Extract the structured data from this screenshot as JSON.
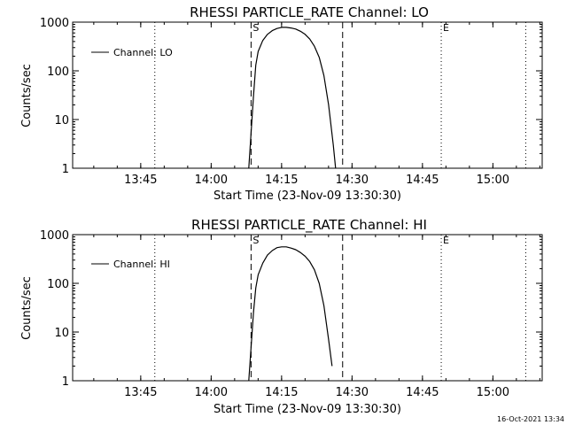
{
  "footer": {
    "timestamp": "16-Oct-2021 13:34"
  },
  "chart_data": [
    {
      "type": "line",
      "title": "RHESSI PARTICLE_RATE Channel: LO",
      "xlabel": "Start Time (23-Nov-09 13:30:30)",
      "ylabel": "Counts/sec",
      "yscale": "log",
      "ylim": [
        1,
        1000
      ],
      "xlim": [
        "13:30:30",
        "15:10:30"
      ],
      "xticks": [
        "13:45",
        "14:00",
        "14:15",
        "14:30",
        "14:45",
        "15:00"
      ],
      "yticks": [
        "1",
        "10",
        "100",
        "1000"
      ],
      "legend": {
        "position": "top-left",
        "entries": [
          "Channel: LO"
        ]
      },
      "markers": [
        {
          "label": "S",
          "time": "14:08:30",
          "style": "dashed"
        },
        {
          "label": "",
          "time": "14:28:00",
          "style": "dashed"
        },
        {
          "label": "",
          "time": "13:48:00",
          "style": "dotted"
        },
        {
          "label": "E",
          "time": "14:49:00",
          "style": "dotted"
        },
        {
          "label": "",
          "time": "15:07:00",
          "style": "dotted"
        }
      ],
      "series": [
        {
          "name": "Channel: LO",
          "x": [
            "14:08:00",
            "14:09:00",
            "14:09:30",
            "14:10:00",
            "14:11:00",
            "14:12:00",
            "14:13:00",
            "14:14:00",
            "14:15:00",
            "14:16:00",
            "14:17:00",
            "14:18:00",
            "14:19:00",
            "14:20:00",
            "14:21:00",
            "14:22:00",
            "14:23:00",
            "14:24:00",
            "14:25:00",
            "14:26:00",
            "14:26:30"
          ],
          "y": [
            1,
            30,
            130,
            250,
            420,
            560,
            670,
            740,
            780,
            780,
            760,
            720,
            650,
            560,
            450,
            320,
            190,
            80,
            20,
            3,
            1
          ]
        }
      ]
    },
    {
      "type": "line",
      "title": "RHESSI PARTICLE_RATE Channel: HI",
      "xlabel": "Start Time (23-Nov-09 13:30:30)",
      "ylabel": "Counts/sec",
      "yscale": "log",
      "ylim": [
        1,
        1000
      ],
      "xlim": [
        "13:30:30",
        "15:10:30"
      ],
      "xticks": [
        "13:45",
        "14:00",
        "14:15",
        "14:30",
        "14:45",
        "15:00"
      ],
      "yticks": [
        "1",
        "10",
        "100",
        "1000"
      ],
      "legend": {
        "position": "top-left",
        "entries": [
          "Channel: HI"
        ]
      },
      "markers": [
        {
          "label": "S",
          "time": "14:08:30",
          "style": "dashed"
        },
        {
          "label": "",
          "time": "14:28:00",
          "style": "dashed"
        },
        {
          "label": "",
          "time": "13:48:00",
          "style": "dotted"
        },
        {
          "label": "E",
          "time": "14:49:00",
          "style": "dotted"
        },
        {
          "label": "",
          "time": "15:07:00",
          "style": "dotted"
        }
      ],
      "series": [
        {
          "name": "Channel: HI",
          "x": [
            "14:08:00",
            "14:09:00",
            "14:09:30",
            "14:10:00",
            "14:11:00",
            "14:12:00",
            "14:13:00",
            "14:14:00",
            "14:15:00",
            "14:16:00",
            "14:17:00",
            "14:18:00",
            "14:19:00",
            "14:20:00",
            "14:21:00",
            "14:22:00",
            "14:23:00",
            "14:24:00",
            "14:25:00",
            "14:25:45"
          ],
          "y": [
            1,
            25,
            80,
            150,
            260,
            380,
            470,
            540,
            560,
            560,
            530,
            490,
            430,
            360,
            280,
            190,
            100,
            35,
            7,
            2
          ]
        }
      ]
    }
  ]
}
